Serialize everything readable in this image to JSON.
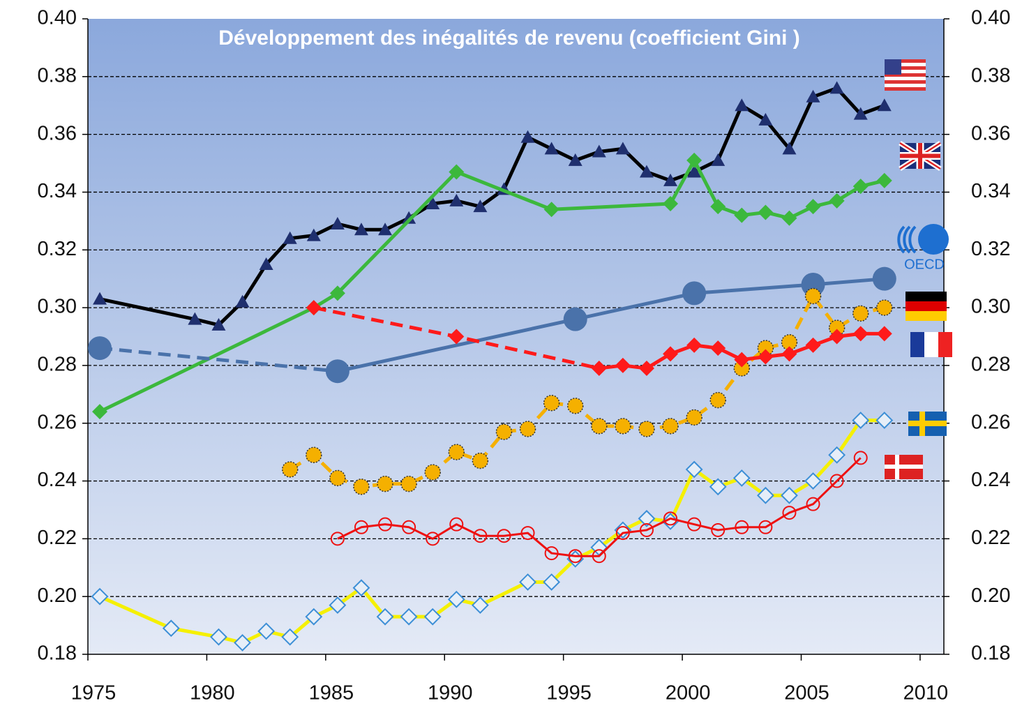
{
  "chart_data": {
    "type": "line",
    "title": "Développement  des inégalités de revenu (coefficient Gini )",
    "oecd_logo": "OECD",
    "xlim": [
      1975,
      2011
    ],
    "xticks": [
      1975,
      1980,
      1985,
      1990,
      1995,
      2000,
      2005,
      2010
    ],
    "ylim": [
      0.18,
      0.4
    ],
    "yticks": [
      0.18,
      {
        "value": 0.2,
        "label": "0.20"
      },
      0.22,
      0.24,
      0.26,
      0.28,
      {
        "value": 0.3,
        "label": "0.30"
      },
      0.32,
      0.34,
      0.36,
      0.38,
      {
        "value": 0.4,
        "label": "0.40"
      }
    ],
    "y2lim": [
      0.18,
      0.4
    ],
    "y2ticks": [
      0.18,
      {
        "value": 0.2,
        "label": "0.20"
      },
      0.22,
      0.24,
      0.26,
      0.28,
      {
        "value": 0.3,
        "label": "0.30"
      },
      0.32,
      0.34,
      0.36,
      0.38,
      {
        "value": 0.4,
        "label": "0.40"
      }
    ],
    "grid": true,
    "series": [
      {
        "color": "#000000",
        "marker": "triangle",
        "marker_color": "#1f2f6e",
        "x": [
          1975.5,
          1979.5,
          1980.5,
          1981.5,
          1982.5,
          1983.5,
          1984.5,
          1985.5,
          1986.5,
          1987.5,
          1988.5,
          1989.5,
          1990.5,
          1991.5,
          1992.5,
          1993.5,
          1994.5,
          1995.5,
          1996.5,
          1997.5,
          1998.5,
          1999.5,
          2000.5,
          2001.5,
          2002.5,
          2003.5,
          2004.5,
          2005.5,
          2006.5,
          2007.5,
          2008.5
        ],
        "values": [
          0.303,
          0.296,
          0.294,
          0.302,
          0.315,
          0.324,
          0.325,
          0.329,
          0.327,
          0.327,
          0.331,
          0.336,
          0.337,
          0.335,
          0.341,
          0.359,
          0.355,
          0.351,
          0.354,
          0.355,
          0.347,
          0.344,
          0.347,
          0.351,
          0.37,
          0.365,
          0.355,
          0.373,
          0.376,
          0.367,
          0.37
        ]
      },
      {
        "color": "#3cb83c",
        "marker": "diamond",
        "marker_color": "#3cb83c",
        "x": [
          1975.5,
          1984.5,
          1985.5,
          1990.5,
          1994.5,
          1999.5,
          2000.5,
          2001.5,
          2002.5,
          2003.5,
          2004.5,
          2005.5,
          2006.5,
          2007.5,
          2008.5
        ],
        "values": [
          0.264,
          0.3,
          0.305,
          0.347,
          0.334,
          0.336,
          0.351,
          0.335,
          0.332,
          0.333,
          0.331,
          0.335,
          0.337,
          0.342,
          0.344
        ]
      },
      {
        "color": "#4a72aa",
        "marker": "bigcircle",
        "marker_color": "#4a72aa",
        "dashed_segments": [
          0
        ],
        "x": [
          1975.5,
          1985.5,
          1995.5,
          2000.5,
          2005.5,
          2008.5
        ],
        "values": [
          0.286,
          0.278,
          0.296,
          0.305,
          0.308,
          0.31
        ]
      },
      {
        "color": "#f5b000",
        "marker": "circle",
        "marker_color": "#f5b000",
        "dashed": true,
        "x": [
          1983.5,
          1984.5,
          1985.5,
          1986.5,
          1987.5,
          1988.5,
          1989.5,
          1990.5,
          1991.5,
          1992.5,
          1993.5,
          1994.5,
          1995.5,
          1996.5,
          1997.5,
          1998.5,
          1999.5,
          2000.5,
          2001.5,
          2002.5,
          2003.5,
          2004.5,
          2005.5,
          2006.5,
          2007.5,
          2008.5
        ],
        "values": [
          0.244,
          0.249,
          0.241,
          0.238,
          0.239,
          0.239,
          0.243,
          0.25,
          0.247,
          0.257,
          0.258,
          0.267,
          0.266,
          0.259,
          0.259,
          0.258,
          0.259,
          0.262,
          0.268,
          0.279,
          0.286,
          0.288,
          0.304,
          0.293,
          0.298,
          0.3
        ]
      },
      {
        "color": "#ff1a1a",
        "marker": "diamond",
        "marker_color": "#ff1a1a",
        "dashed_segments": [
          0,
          1
        ],
        "x": [
          1984.5,
          1990.5,
          1996.5,
          1997.5,
          1998.5,
          1999.5,
          2000.5,
          2001.5,
          2002.5,
          2003.5,
          2004.5,
          2005.5,
          2006.5,
          2007.5,
          2008.5
        ],
        "values": [
          0.3,
          0.29,
          0.279,
          0.28,
          0.279,
          0.284,
          0.287,
          0.286,
          0.282,
          0.283,
          0.284,
          0.287,
          0.29,
          0.291,
          0.291
        ]
      },
      {
        "color": "#f5f000",
        "marker": "opendiamond",
        "marker_color": "#3d8fd6",
        "x": [
          1975.5,
          1978.5,
          1980.5,
          1981.5,
          1982.5,
          1983.5,
          1984.5,
          1985.5,
          1986.5,
          1987.5,
          1988.5,
          1989.5,
          1990.5,
          1991.5,
          1993.5,
          1994.5,
          1995.5,
          1996.5,
          1997.5,
          1998.5,
          1999.5,
          2000.5,
          2001.5,
          2002.5,
          2003.5,
          2004.5,
          2005.5,
          2006.5,
          2007.5,
          2008.5
        ],
        "values": [
          0.2,
          0.189,
          0.186,
          0.184,
          0.188,
          0.186,
          0.193,
          0.197,
          0.203,
          0.193,
          0.193,
          0.193,
          0.199,
          0.197,
          0.205,
          0.205,
          0.213,
          0.217,
          0.223,
          0.227,
          0.226,
          0.244,
          0.238,
          0.241,
          0.235,
          0.235,
          0.24,
          0.249,
          0.261,
          0.261
        ]
      },
      {
        "color": "#ee1111",
        "marker": "opencircle",
        "marker_color": "#ee1111",
        "thin": true,
        "x": [
          1985.5,
          1986.5,
          1987.5,
          1988.5,
          1989.5,
          1990.5,
          1991.5,
          1992.5,
          1993.5,
          1994.5,
          1995.5,
          1996.5,
          1997.5,
          1998.5,
          1999.5,
          2000.5,
          2001.5,
          2002.5,
          2003.5,
          2004.5,
          2005.5,
          2006.5,
          2007.5
        ],
        "values": [
          0.22,
          0.224,
          0.225,
          0.224,
          0.22,
          0.225,
          0.221,
          0.221,
          0.222,
          0.215,
          0.214,
          0.214,
          0.222,
          0.223,
          0.227,
          0.225,
          0.223,
          0.224,
          0.224,
          0.229,
          0.232,
          0.24,
          0.248
        ]
      }
    ]
  }
}
